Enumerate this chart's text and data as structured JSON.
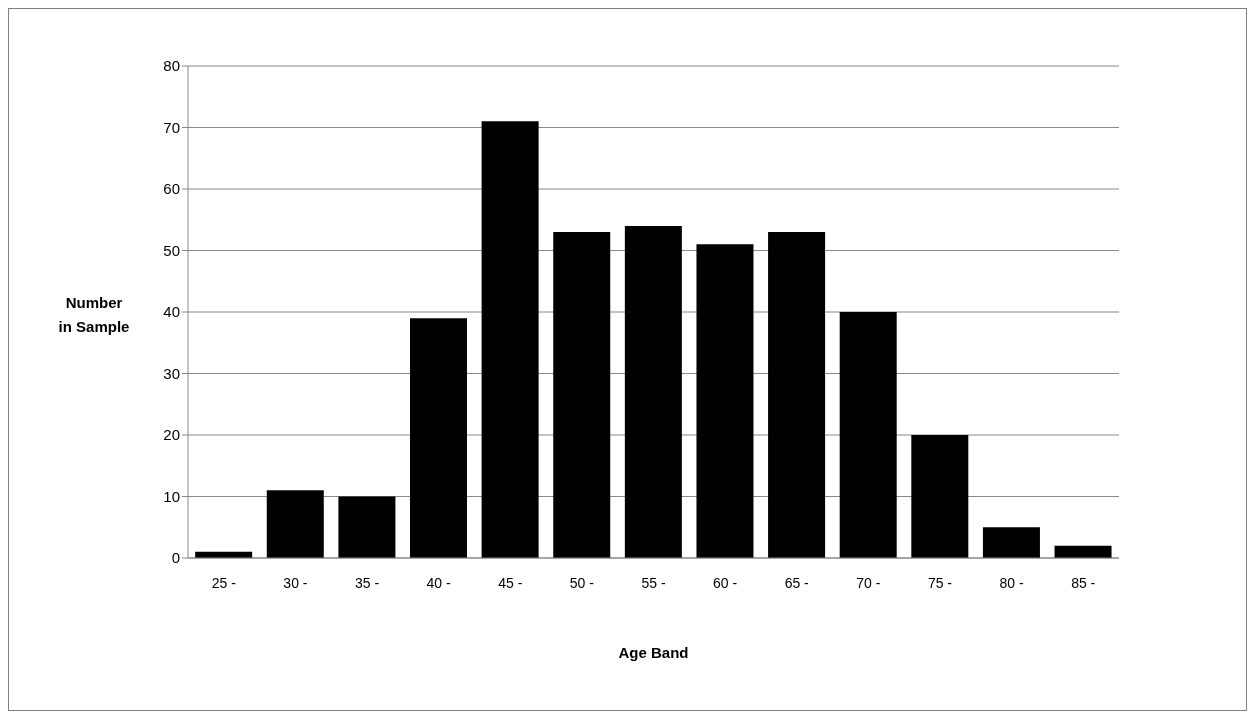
{
  "chart_data": {
    "type": "bar",
    "xlabel": "Age Band",
    "ylabel": "Number in Sample",
    "categories": [
      "25 -",
      "30 -",
      "35 -",
      "40 -",
      "45 -",
      "50 -",
      "55 -",
      "60 -",
      "65 -",
      "70 -",
      "75 -",
      "80 -",
      "85 -"
    ],
    "values": [
      1,
      11,
      10,
      39,
      71,
      53,
      54,
      51,
      53,
      40,
      20,
      5,
      2
    ],
    "color": "#000000",
    "ylim": [
      0,
      80
    ],
    "yticks": [
      0,
      10,
      20,
      30,
      40,
      50,
      60,
      70,
      80
    ],
    "grid": "y",
    "legend": false
  }
}
